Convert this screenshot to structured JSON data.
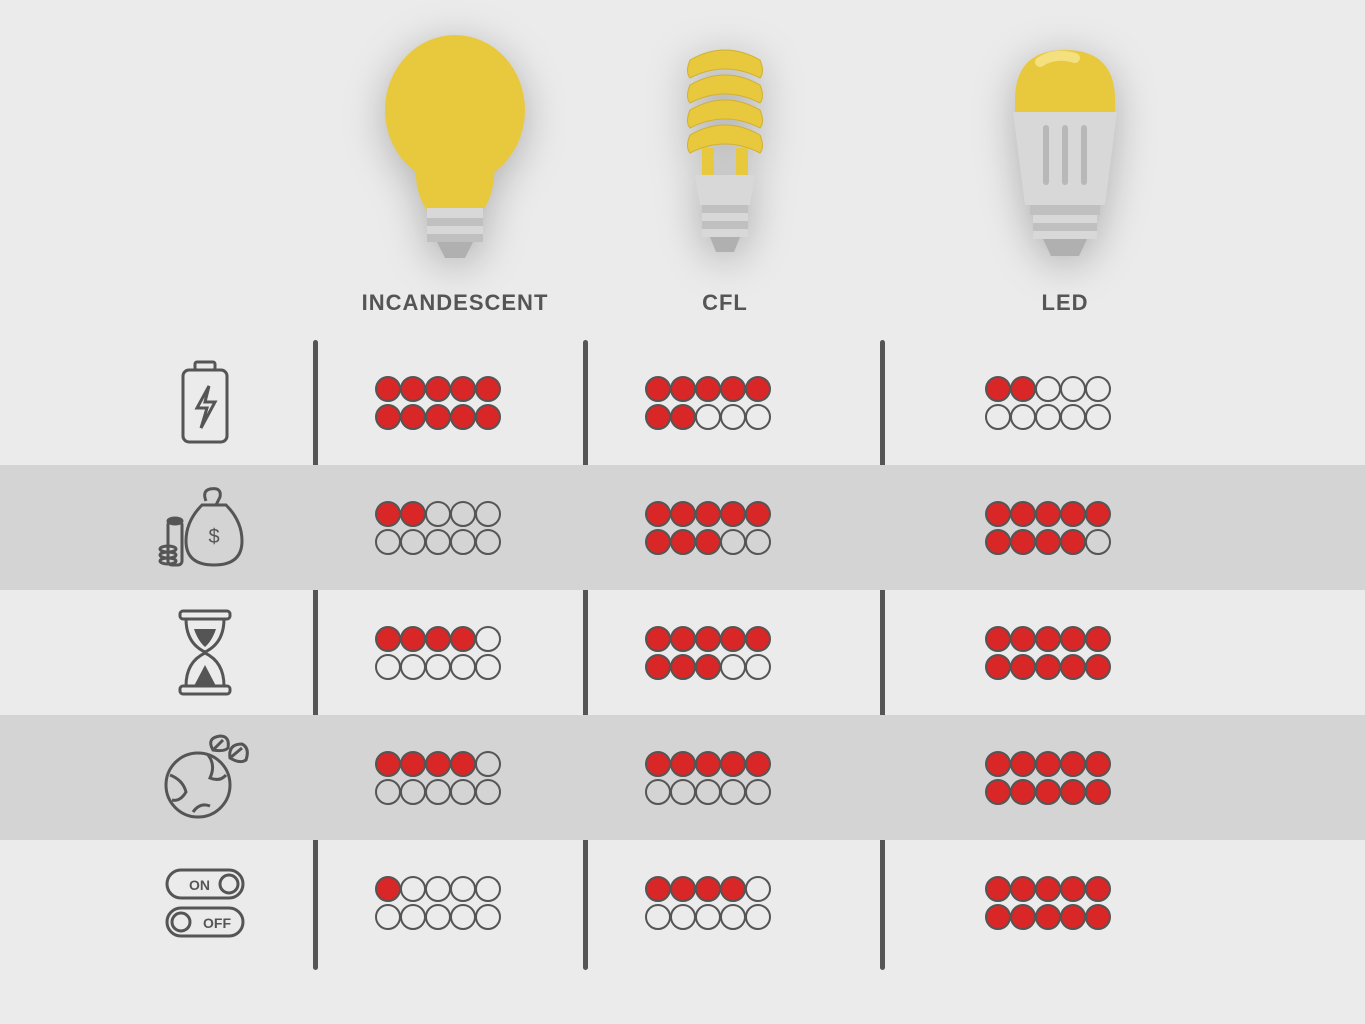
{
  "background_color": "#ebebeb",
  "alt_row_color": "#d4d4d4",
  "line_color": "#555555",
  "dot_fill_color": "#d92626",
  "dot_border_color": "#555555",
  "label_color": "#555555",
  "label_fontsize": 22,
  "bulb_yellow": "#e8c83c",
  "bulb_yellow_light": "#f0d456",
  "bulb_grey": "#c0c0c0",
  "bulb_grey_light": "#d8d8d8",
  "columns": [
    {
      "id": "incandescent",
      "label": "INCANDESCENT"
    },
    {
      "id": "cfl",
      "label": "CFL"
    },
    {
      "id": "led",
      "label": "LED"
    }
  ],
  "metrics": [
    {
      "id": "energy",
      "icon": "battery-lightning-icon",
      "scores": [
        10,
        7,
        2
      ]
    },
    {
      "id": "cost",
      "icon": "money-bag-icon",
      "scores": [
        2,
        8,
        9
      ]
    },
    {
      "id": "lifespan",
      "icon": "hourglass-icon",
      "scores": [
        4,
        8,
        10
      ]
    },
    {
      "id": "eco",
      "icon": "earth-leaf-icon",
      "scores": [
        4,
        5,
        10
      ]
    },
    {
      "id": "switching",
      "icon": "on-off-toggle-icon",
      "scores": [
        1,
        4,
        10
      ]
    }
  ],
  "dots_per_row": 5,
  "dots_total": 10
}
